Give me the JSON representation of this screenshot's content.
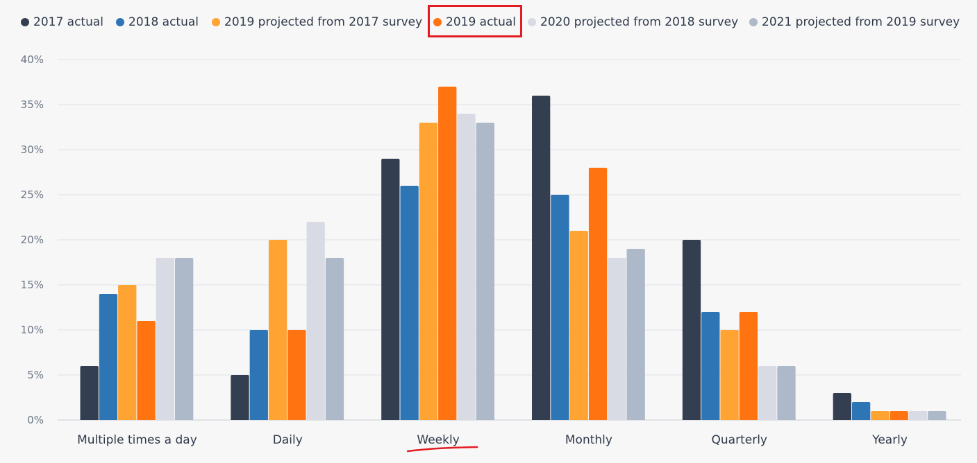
{
  "chart_data": {
    "type": "bar",
    "categories": [
      "Multiple times a day",
      "Daily",
      "Weekly",
      "Monthly",
      "Quarterly",
      "Yearly"
    ],
    "series": [
      {
        "name": "2017 actual",
        "color": "#333f50",
        "values": [
          6,
          5,
          29,
          36,
          20,
          3
        ]
      },
      {
        "name": "2018 actual",
        "color": "#2e75b6",
        "values": [
          14,
          10,
          26,
          25,
          12,
          2
        ]
      },
      {
        "name": "2019 projected from 2017 survey",
        "color": "#ffa333",
        "values": [
          15,
          20,
          33,
          21,
          10,
          1
        ]
      },
      {
        "name": "2019 actual",
        "color": "#ff7410",
        "values": [
          11,
          10,
          37,
          28,
          12,
          1
        ]
      },
      {
        "name": "2020 projected from 2018 survey",
        "color": "#d8dbe3",
        "values": [
          18,
          22,
          34,
          18,
          6,
          1
        ]
      },
      {
        "name": "2021 projected from 2019 survey",
        "color": "#adb9c9",
        "values": [
          18,
          18,
          33,
          19,
          6,
          1
        ]
      }
    ],
    "y_tick_labels": [
      "0%",
      "5%",
      "10%",
      "15%",
      "20%",
      "25%",
      "30%",
      "35%",
      "40%"
    ],
    "ylim": [
      0,
      40
    ],
    "grid": true,
    "legend_position": "top",
    "annotations": {
      "boxed_legend_entry": "2019 actual",
      "underlined_category": "Weekly",
      "annotation_color": "#e31b23"
    }
  }
}
